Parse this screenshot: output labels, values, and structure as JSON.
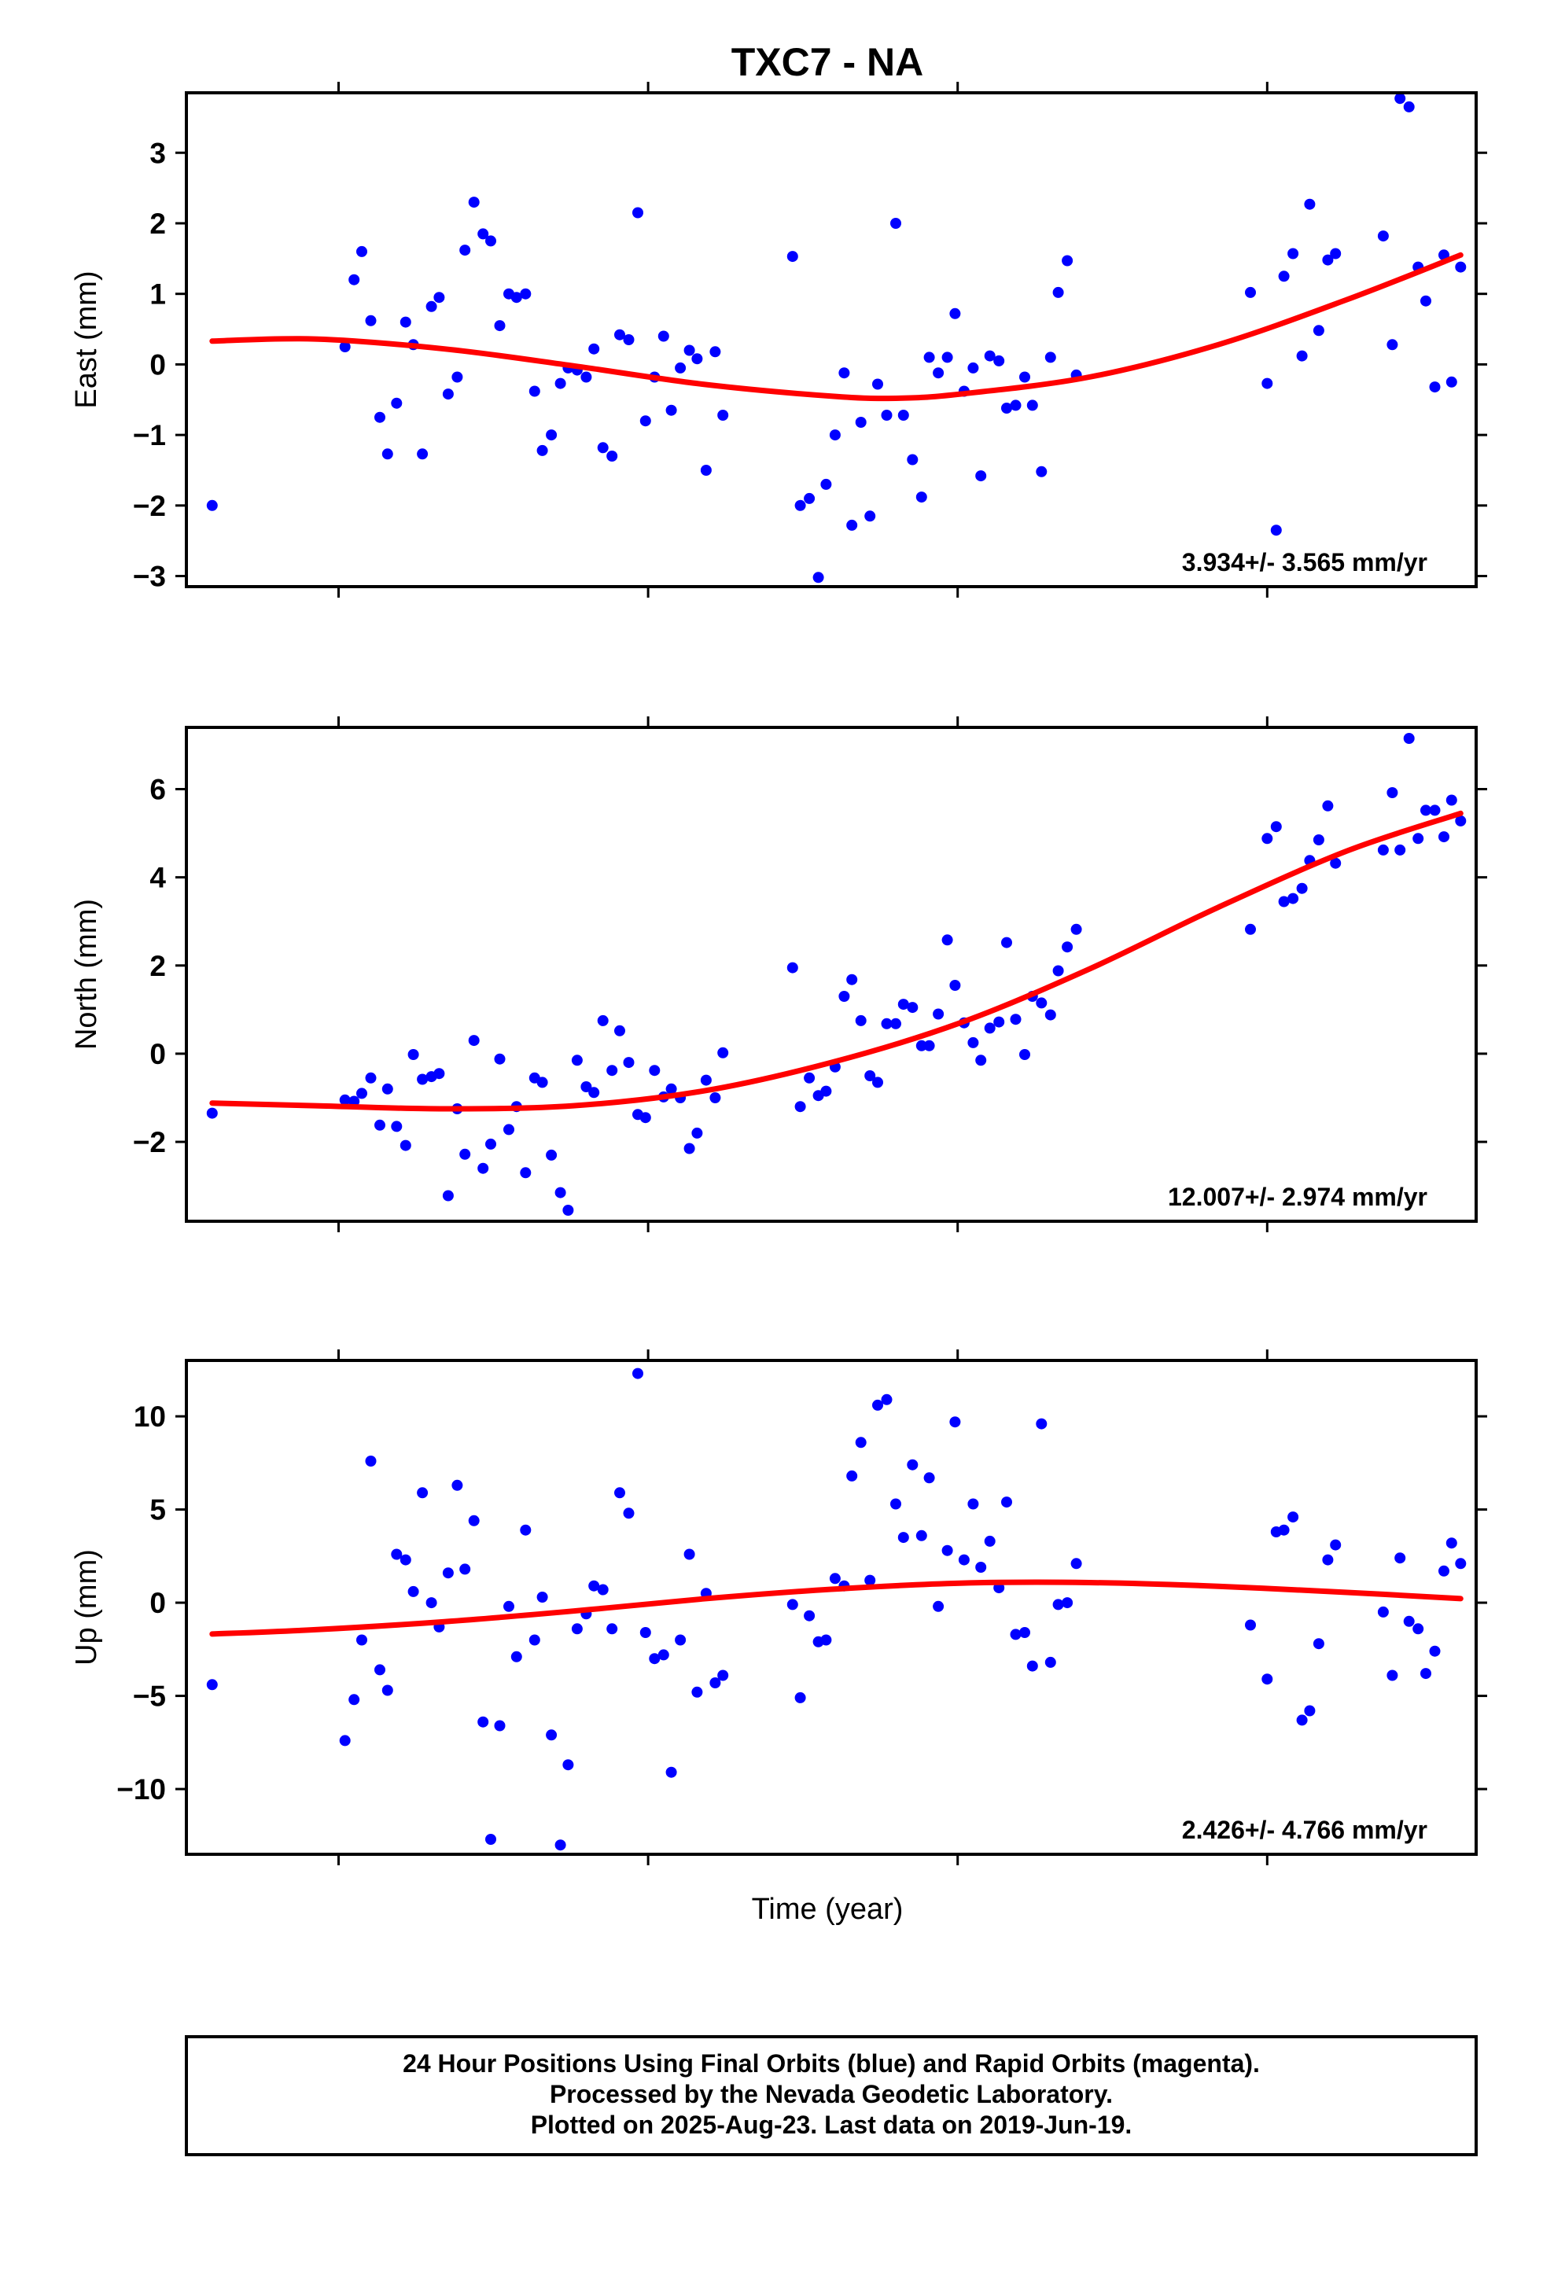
{
  "title": "TXC7 - NA",
  "xlabel": "Time (year)",
  "footer": {
    "line1": "24 Hour Positions Using Final Orbits (blue) and Rapid Orbits (magenta).",
    "line2": "Processed by the Nevada Geodetic Laboratory.",
    "line3": "Plotted on 2025-Aug-23. Last data on 2019-Jun-19."
  },
  "colors": {
    "points": "#0000ff",
    "fit": "#ff0000",
    "frame": "#000000"
  },
  "chart_data": [
    {
      "type": "scatter",
      "name": "east",
      "ylabel": "East (mm)",
      "rate_text": "3.934+/- 3.565 mm/yr",
      "xlim": [
        0,
        100
      ],
      "ylim": [
        -3.15,
        3.85
      ],
      "yticks": [
        -3,
        -2,
        -1,
        0,
        1,
        2,
        3
      ],
      "ytick_labels": [
        "−3",
        "−2",
        "−1",
        "0",
        "1",
        "2",
        "3"
      ],
      "x_ticks_unlabeled": [
        11.8,
        35.8,
        59.8,
        83.8
      ],
      "points": [
        [
          2.0,
          -2.0
        ],
        [
          12.3,
          0.25
        ],
        [
          13.0,
          1.2
        ],
        [
          13.6,
          1.6
        ],
        [
          14.3,
          0.62
        ],
        [
          15.0,
          -0.75
        ],
        [
          15.6,
          -1.27
        ],
        [
          16.3,
          -0.55
        ],
        [
          17.0,
          0.6
        ],
        [
          17.6,
          0.28
        ],
        [
          18.3,
          -1.27
        ],
        [
          19.0,
          0.82
        ],
        [
          19.6,
          0.95
        ],
        [
          20.3,
          -0.42
        ],
        [
          21.0,
          -0.18
        ],
        [
          21.6,
          1.62
        ],
        [
          22.3,
          2.3
        ],
        [
          23.0,
          1.85
        ],
        [
          23.6,
          1.75
        ],
        [
          24.3,
          0.55
        ],
        [
          25.0,
          1.0
        ],
        [
          25.6,
          0.95
        ],
        [
          26.3,
          1.0
        ],
        [
          27.0,
          -0.38
        ],
        [
          27.6,
          -1.22
        ],
        [
          28.3,
          -1.0
        ],
        [
          29.0,
          -0.27
        ],
        [
          29.6,
          -0.05
        ],
        [
          30.3,
          -0.08
        ],
        [
          31.0,
          -0.18
        ],
        [
          31.6,
          0.22
        ],
        [
          32.3,
          -1.18
        ],
        [
          33.0,
          -1.3
        ],
        [
          33.6,
          0.42
        ],
        [
          34.3,
          0.35
        ],
        [
          35.0,
          2.15
        ],
        [
          35.6,
          -0.8
        ],
        [
          36.3,
          -0.18
        ],
        [
          37.0,
          0.4
        ],
        [
          37.6,
          -0.65
        ],
        [
          38.3,
          -0.05
        ],
        [
          39.0,
          0.2
        ],
        [
          39.6,
          0.08
        ],
        [
          40.3,
          -1.5
        ],
        [
          41.0,
          0.18
        ],
        [
          41.6,
          -0.72
        ],
        [
          47.0,
          1.53
        ],
        [
          47.6,
          -2.0
        ],
        [
          48.3,
          -1.9
        ],
        [
          49.0,
          -3.02
        ],
        [
          49.6,
          -1.7
        ],
        [
          50.3,
          -1.0
        ],
        [
          51.0,
          -0.12
        ],
        [
          51.6,
          -2.28
        ],
        [
          52.3,
          -0.82
        ],
        [
          53.0,
          -2.15
        ],
        [
          53.6,
          -0.28
        ],
        [
          54.3,
          -0.72
        ],
        [
          55.0,
          2.0
        ],
        [
          55.6,
          -0.72
        ],
        [
          56.3,
          -1.35
        ],
        [
          57.0,
          -1.88
        ],
        [
          57.6,
          0.1
        ],
        [
          58.3,
          -0.12
        ],
        [
          59.0,
          0.1
        ],
        [
          59.6,
          0.72
        ],
        [
          60.3,
          -0.38
        ],
        [
          61.0,
          -0.05
        ],
        [
          61.6,
          -1.58
        ],
        [
          62.3,
          0.12
        ],
        [
          63.0,
          0.05
        ],
        [
          63.6,
          -0.62
        ],
        [
          64.3,
          -0.58
        ],
        [
          65.0,
          -0.18
        ],
        [
          65.6,
          -0.58
        ],
        [
          66.3,
          -1.52
        ],
        [
          67.0,
          0.1
        ],
        [
          67.6,
          1.02
        ],
        [
          68.3,
          1.47
        ],
        [
          69.0,
          -0.15
        ],
        [
          82.5,
          1.02
        ],
        [
          83.8,
          -0.27
        ],
        [
          84.5,
          -2.35
        ],
        [
          85.1,
          1.25
        ],
        [
          85.8,
          1.57
        ],
        [
          86.5,
          0.12
        ],
        [
          87.1,
          2.27
        ],
        [
          87.8,
          0.48
        ],
        [
          88.5,
          1.48
        ],
        [
          89.1,
          1.57
        ],
        [
          92.8,
          1.82
        ],
        [
          93.5,
          0.28
        ],
        [
          94.1,
          3.77
        ],
        [
          94.8,
          3.65
        ],
        [
          95.5,
          1.38
        ],
        [
          96.1,
          0.9
        ],
        [
          96.8,
          -0.32
        ],
        [
          97.5,
          1.55
        ],
        [
          98.1,
          -0.25
        ],
        [
          98.8,
          1.38
        ]
      ],
      "fit": [
        [
          2,
          0.33
        ],
        [
          10,
          0.36
        ],
        [
          20,
          0.22
        ],
        [
          30,
          -0.02
        ],
        [
          40,
          -0.28
        ],
        [
          50,
          -0.45
        ],
        [
          55,
          -0.48
        ],
        [
          60,
          -0.42
        ],
        [
          70,
          -0.18
        ],
        [
          80,
          0.28
        ],
        [
          90,
          0.92
        ],
        [
          98.8,
          1.55
        ]
      ]
    },
    {
      "type": "scatter",
      "name": "north",
      "ylabel": "North (mm)",
      "rate_text": "12.007+/- 2.974 mm/yr",
      "xlim": [
        0,
        100
      ],
      "ylim": [
        -3.8,
        7.4
      ],
      "yticks": [
        -2,
        0,
        2,
        4,
        6
      ],
      "ytick_labels": [
        "−2",
        "0",
        "2",
        "4",
        "6"
      ],
      "x_ticks_unlabeled": [
        11.8,
        35.8,
        59.8,
        83.8
      ],
      "points": [
        [
          2.0,
          -1.35
        ],
        [
          12.3,
          -1.05
        ],
        [
          13.0,
          -1.08
        ],
        [
          13.6,
          -0.9
        ],
        [
          14.3,
          -0.55
        ],
        [
          15.0,
          -1.62
        ],
        [
          15.6,
          -0.8
        ],
        [
          16.3,
          -1.65
        ],
        [
          17.0,
          -2.08
        ],
        [
          17.6,
          -0.02
        ],
        [
          18.3,
          -0.58
        ],
        [
          19.0,
          -0.52
        ],
        [
          19.6,
          -0.45
        ],
        [
          20.3,
          -3.22
        ],
        [
          21.0,
          -1.25
        ],
        [
          21.6,
          -2.28
        ],
        [
          22.3,
          0.3
        ],
        [
          23.0,
          -2.6
        ],
        [
          23.6,
          -2.05
        ],
        [
          24.3,
          -0.12
        ],
        [
          25.0,
          -1.72
        ],
        [
          25.6,
          -1.2
        ],
        [
          26.3,
          -2.7
        ],
        [
          27.0,
          -0.55
        ],
        [
          27.6,
          -0.65
        ],
        [
          28.3,
          -2.3
        ],
        [
          29.0,
          -3.15
        ],
        [
          29.6,
          -3.55
        ],
        [
          30.3,
          -0.15
        ],
        [
          31.0,
          -0.75
        ],
        [
          31.6,
          -0.88
        ],
        [
          32.3,
          0.75
        ],
        [
          33.0,
          -0.38
        ],
        [
          33.6,
          0.52
        ],
        [
          34.3,
          -0.2
        ],
        [
          35.0,
          -1.38
        ],
        [
          35.6,
          -1.45
        ],
        [
          36.3,
          -0.38
        ],
        [
          37.0,
          -0.98
        ],
        [
          37.6,
          -0.8
        ],
        [
          38.3,
          -1.0
        ],
        [
          39.0,
          -2.15
        ],
        [
          39.6,
          -1.8
        ],
        [
          40.3,
          -0.6
        ],
        [
          41.0,
          -1.0
        ],
        [
          41.6,
          0.02
        ],
        [
          47.0,
          1.95
        ],
        [
          47.6,
          -1.2
        ],
        [
          48.3,
          -0.55
        ],
        [
          49.0,
          -0.95
        ],
        [
          49.6,
          -0.85
        ],
        [
          50.3,
          -0.3
        ],
        [
          51.0,
          1.3
        ],
        [
          51.6,
          1.68
        ],
        [
          52.3,
          0.75
        ],
        [
          53.0,
          -0.5
        ],
        [
          53.6,
          -0.65
        ],
        [
          54.3,
          0.68
        ],
        [
          55.0,
          0.68
        ],
        [
          55.6,
          1.12
        ],
        [
          56.3,
          1.05
        ],
        [
          57.0,
          0.18
        ],
        [
          57.6,
          0.18
        ],
        [
          58.3,
          0.9
        ],
        [
          59.0,
          2.58
        ],
        [
          59.6,
          1.55
        ],
        [
          60.3,
          0.7
        ],
        [
          61.0,
          0.25
        ],
        [
          61.6,
          -0.15
        ],
        [
          62.3,
          0.58
        ],
        [
          63.0,
          0.72
        ],
        [
          63.6,
          2.52
        ],
        [
          64.3,
          0.78
        ],
        [
          65.0,
          -0.02
        ],
        [
          65.6,
          1.3
        ],
        [
          66.3,
          1.15
        ],
        [
          67.0,
          0.88
        ],
        [
          67.6,
          1.88
        ],
        [
          68.3,
          2.42
        ],
        [
          69.0,
          2.82
        ],
        [
          82.5,
          2.82
        ],
        [
          83.8,
          4.88
        ],
        [
          84.5,
          5.15
        ],
        [
          85.1,
          3.45
        ],
        [
          85.8,
          3.52
        ],
        [
          86.5,
          3.75
        ],
        [
          87.1,
          4.38
        ],
        [
          87.8,
          4.85
        ],
        [
          88.5,
          5.62
        ],
        [
          89.1,
          4.32
        ],
        [
          92.8,
          4.62
        ],
        [
          93.5,
          5.92
        ],
        [
          94.1,
          4.62
        ],
        [
          94.8,
          7.15
        ],
        [
          95.5,
          4.88
        ],
        [
          96.1,
          5.52
        ],
        [
          96.8,
          5.52
        ],
        [
          97.5,
          4.92
        ],
        [
          98.1,
          5.75
        ],
        [
          98.8,
          5.28
        ]
      ],
      "fit": [
        [
          2,
          -1.12
        ],
        [
          10,
          -1.18
        ],
        [
          20,
          -1.25
        ],
        [
          30,
          -1.18
        ],
        [
          40,
          -0.85
        ],
        [
          50,
          -0.2
        ],
        [
          60,
          0.7
        ],
        [
          70,
          1.92
        ],
        [
          80,
          3.32
        ],
        [
          90,
          4.6
        ],
        [
          98.8,
          5.45
        ]
      ]
    },
    {
      "type": "scatter",
      "name": "up",
      "ylabel": "Up (mm)",
      "rate_text": "2.426+/- 4.766 mm/yr",
      "xlim": [
        0,
        100
      ],
      "ylim": [
        -13.5,
        13.0
      ],
      "yticks": [
        -10,
        -5,
        0,
        5,
        10
      ],
      "ytick_labels": [
        "−10",
        "−5",
        "0",
        "5",
        "10"
      ],
      "x_ticks_unlabeled": [
        11.8,
        35.8,
        59.8,
        83.8
      ],
      "points": [
        [
          2.0,
          -4.4
        ],
        [
          12.3,
          -7.4
        ],
        [
          13.0,
          -5.2
        ],
        [
          13.6,
          -2.0
        ],
        [
          14.3,
          7.6
        ],
        [
          15.0,
          -3.6
        ],
        [
          15.6,
          -4.7
        ],
        [
          16.3,
          2.6
        ],
        [
          17.0,
          2.3
        ],
        [
          17.6,
          0.6
        ],
        [
          18.3,
          5.9
        ],
        [
          19.0,
          0.0
        ],
        [
          19.6,
          -1.3
        ],
        [
          20.3,
          1.6
        ],
        [
          21.0,
          6.3
        ],
        [
          21.6,
          1.8
        ],
        [
          22.3,
          4.4
        ],
        [
          23.0,
          -6.4
        ],
        [
          23.6,
          -12.7
        ],
        [
          24.3,
          -6.6
        ],
        [
          25.0,
          -0.2
        ],
        [
          25.6,
          -2.9
        ],
        [
          26.3,
          3.9
        ],
        [
          27.0,
          -2.0
        ],
        [
          27.6,
          0.3
        ],
        [
          28.3,
          -7.1
        ],
        [
          29.0,
          -13.0
        ],
        [
          29.6,
          -8.7
        ],
        [
          30.3,
          -1.4
        ],
        [
          31.0,
          -0.6
        ],
        [
          31.6,
          0.9
        ],
        [
          32.3,
          0.7
        ],
        [
          33.0,
          -1.4
        ],
        [
          33.6,
          5.9
        ],
        [
          34.3,
          4.8
        ],
        [
          35.0,
          12.3
        ],
        [
          35.6,
          -1.6
        ],
        [
          36.3,
          -3.0
        ],
        [
          37.0,
          -2.8
        ],
        [
          37.6,
          -9.1
        ],
        [
          38.3,
          -2.0
        ],
        [
          39.0,
          2.6
        ],
        [
          39.6,
          -4.8
        ],
        [
          40.3,
          0.5
        ],
        [
          41.0,
          -4.3
        ],
        [
          41.6,
          -3.9
        ],
        [
          47.0,
          -0.1
        ],
        [
          47.6,
          -5.1
        ],
        [
          48.3,
          -0.7
        ],
        [
          49.0,
          -2.1
        ],
        [
          49.6,
          -2.0
        ],
        [
          50.3,
          1.3
        ],
        [
          51.0,
          0.9
        ],
        [
          51.6,
          6.8
        ],
        [
          52.3,
          8.6
        ],
        [
          53.0,
          1.2
        ],
        [
          53.6,
          10.6
        ],
        [
          54.3,
          10.9
        ],
        [
          55.0,
          5.3
        ],
        [
          55.6,
          3.5
        ],
        [
          56.3,
          7.4
        ],
        [
          57.0,
          3.6
        ],
        [
          57.6,
          6.7
        ],
        [
          58.3,
          -0.2
        ],
        [
          59.0,
          2.8
        ],
        [
          59.6,
          9.7
        ],
        [
          60.3,
          2.3
        ],
        [
          61.0,
          5.3
        ],
        [
          61.6,
          1.9
        ],
        [
          62.3,
          3.3
        ],
        [
          63.0,
          0.8
        ],
        [
          63.6,
          5.4
        ],
        [
          64.3,
          -1.7
        ],
        [
          65.0,
          -1.6
        ],
        [
          65.6,
          -3.4
        ],
        [
          66.3,
          9.6
        ],
        [
          67.0,
          -3.2
        ],
        [
          67.6,
          -0.1
        ],
        [
          68.3,
          0.0
        ],
        [
          69.0,
          2.1
        ],
        [
          82.5,
          -1.2
        ],
        [
          83.8,
          -4.1
        ],
        [
          84.5,
          3.8
        ],
        [
          85.1,
          3.9
        ],
        [
          85.8,
          4.6
        ],
        [
          86.5,
          -6.3
        ],
        [
          87.1,
          -5.8
        ],
        [
          87.8,
          -2.2
        ],
        [
          88.5,
          2.3
        ],
        [
          89.1,
          3.1
        ],
        [
          92.8,
          -0.5
        ],
        [
          93.5,
          -3.9
        ],
        [
          94.1,
          2.4
        ],
        [
          94.8,
          -1.0
        ],
        [
          95.5,
          -1.4
        ],
        [
          96.1,
          -3.8
        ],
        [
          96.8,
          -2.6
        ],
        [
          97.5,
          1.7
        ],
        [
          98.1,
          3.2
        ],
        [
          98.8,
          2.1
        ]
      ],
      "fit": [
        [
          2,
          -1.68
        ],
        [
          10,
          -1.45
        ],
        [
          20,
          -1.02
        ],
        [
          30,
          -0.45
        ],
        [
          40,
          0.2
        ],
        [
          50,
          0.72
        ],
        [
          60,
          1.05
        ],
        [
          70,
          1.08
        ],
        [
          80,
          0.88
        ],
        [
          90,
          0.55
        ],
        [
          98.8,
          0.22
        ]
      ]
    }
  ]
}
